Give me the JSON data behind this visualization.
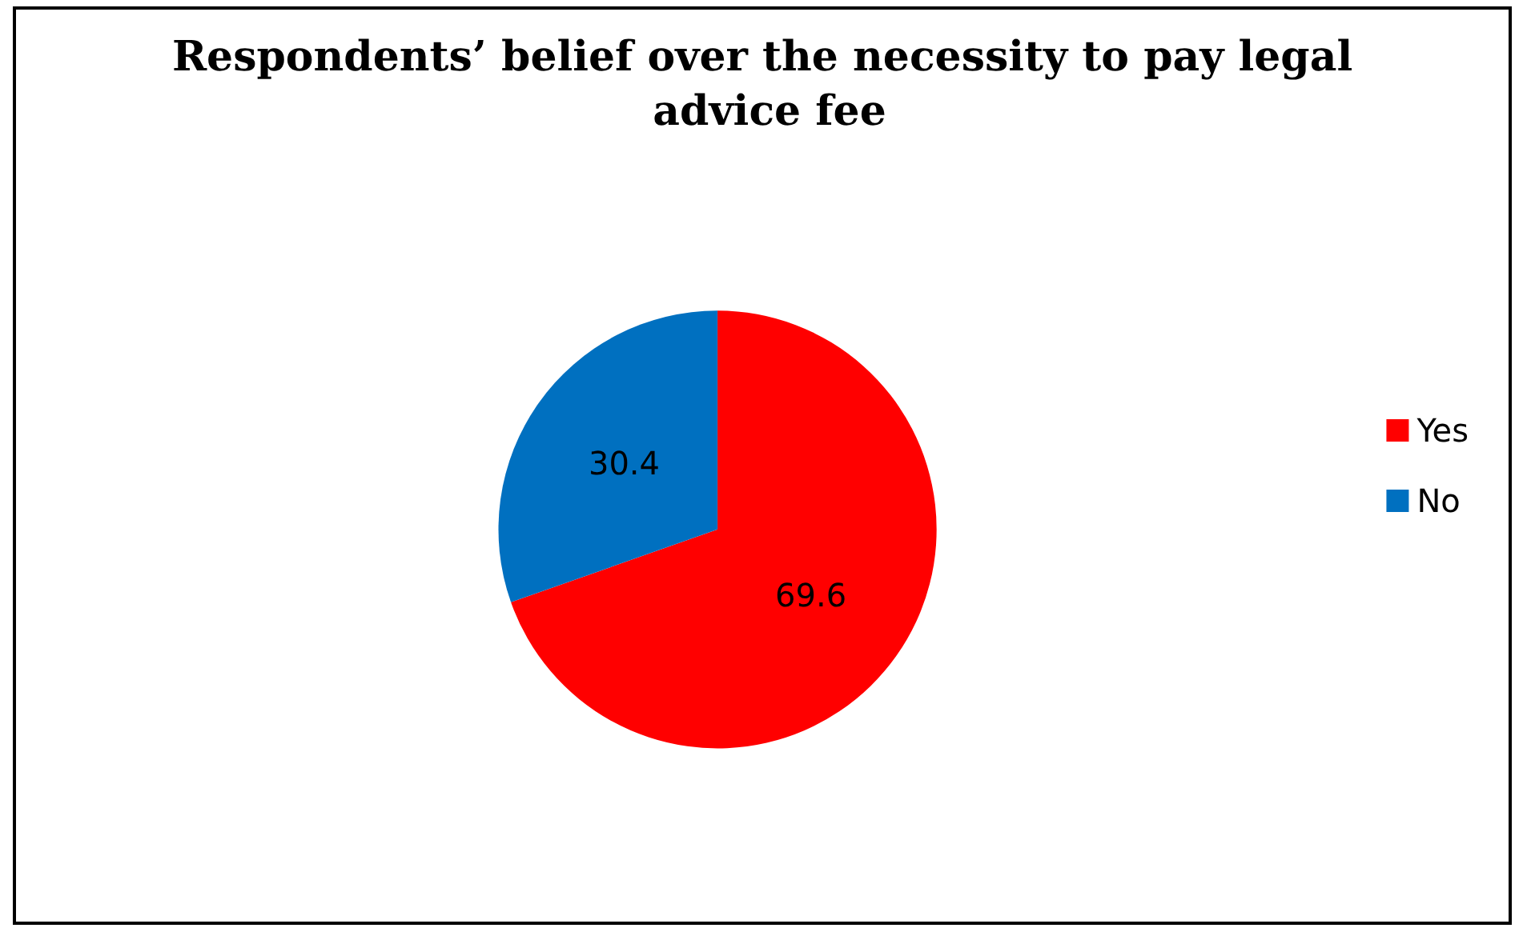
{
  "chart_data": {
    "type": "pie",
    "title": "Respondents’ belief over the necessity to pay legal advice fee",
    "categories": [
      "Yes",
      "No"
    ],
    "values": [
      69.6,
      30.4
    ],
    "colors": [
      "#ff0000",
      "#0070c0"
    ],
    "data_labels": true,
    "legend": "right"
  }
}
